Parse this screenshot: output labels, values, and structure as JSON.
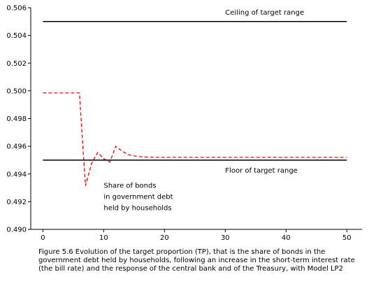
{
  "chart_data": {
    "type": "line",
    "title": "",
    "xlabel": "",
    "ylabel": "",
    "xlim": [
      -2,
      52.5
    ],
    "ylim": [
      0.49,
      0.506
    ],
    "xticks": [
      0,
      10,
      20,
      30,
      40,
      50
    ],
    "yticks": [
      0.49,
      0.492,
      0.494,
      0.496,
      0.498,
      0.5,
      0.502,
      0.504,
      0.506
    ],
    "ytick_labels": [
      "0.490",
      "0.492",
      "0.494",
      "0.496",
      "0.498",
      "0.500",
      "0.502",
      "0.504",
      "0.506"
    ],
    "grid": false,
    "series": [
      {
        "name": "Share of bonds in government debt held by households",
        "color": "#ff0000",
        "style": "dashed",
        "x": [
          0,
          1,
          2,
          3,
          4,
          5,
          6,
          7,
          8,
          9,
          10,
          11,
          12,
          13,
          14,
          15,
          16,
          17,
          18,
          19,
          20,
          21,
          22,
          23,
          24,
          25,
          26,
          27,
          28,
          29,
          30,
          31,
          32,
          33,
          34,
          35,
          36,
          37,
          38,
          39,
          40,
          41,
          42,
          43,
          44,
          45,
          46,
          47,
          48,
          49,
          50
        ],
        "values": [
          0.49985,
          0.49985,
          0.49985,
          0.49985,
          0.49985,
          0.49985,
          0.49985,
          0.49315,
          0.49475,
          0.49555,
          0.4951,
          0.49485,
          0.496,
          0.49565,
          0.4954,
          0.4953,
          0.49525,
          0.49522,
          0.49521,
          0.4952,
          0.4952,
          0.4952,
          0.4952,
          0.4952,
          0.4952,
          0.4952,
          0.4952,
          0.4952,
          0.4952,
          0.4952,
          0.4952,
          0.4952,
          0.4952,
          0.4952,
          0.4952,
          0.4952,
          0.4952,
          0.4952,
          0.4952,
          0.4952,
          0.4952,
          0.4952,
          0.4952,
          0.4952,
          0.4952,
          0.4952,
          0.4952,
          0.4952,
          0.4952,
          0.4952,
          0.4952
        ]
      },
      {
        "name": "Ceiling of target range",
        "color": "#000000",
        "style": "solid",
        "x": [
          0,
          50
        ],
        "values": [
          0.505,
          0.505
        ]
      },
      {
        "name": "Floor of target range",
        "color": "#000000",
        "style": "solid",
        "x": [
          0,
          50
        ],
        "values": [
          0.495,
          0.495
        ]
      }
    ],
    "annotations": [
      {
        "text": "Ceiling of target range",
        "x": 30,
        "y": 0.5055
      },
      {
        "text": "Floor of target range",
        "x": 30,
        "y": 0.4941
      },
      {
        "text": "Share of bonds",
        "x": 10,
        "y": 0.493
      },
      {
        "text": "in government debt",
        "x": 10,
        "y": 0.4922
      },
      {
        "text": "held by households",
        "x": 10,
        "y": 0.4914
      }
    ]
  },
  "caption": "Figure 5.6  Evolution of the target proportion (TP), that is the share of bonds in the government debt held by households, following an increase in the short-term interest rate (the bill rate) and the response of the central bank and of the Treasury, with Model LP2"
}
